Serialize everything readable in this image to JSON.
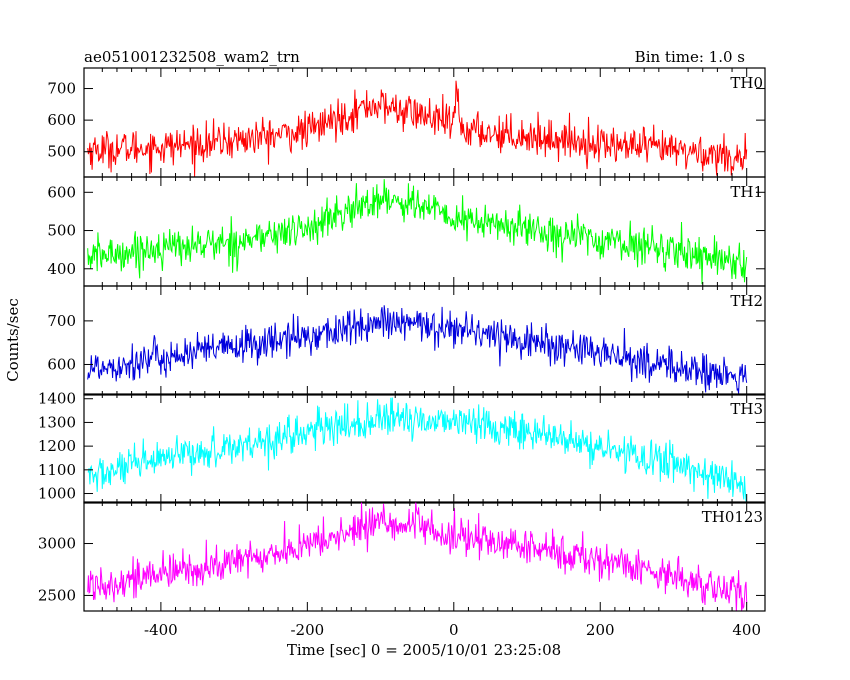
{
  "chart_data": {
    "type": "line",
    "title": "ae051001232508_wam2_trn",
    "subtitle": "Bin time: 1.0 s",
    "xlabel": "Time [sec] 0 = 2005/10/01 23:25:08",
    "ylabel": "Counts/sec",
    "xlim": [
      -505,
      425
    ],
    "xticks": [
      -400,
      -200,
      0,
      200,
      400
    ],
    "grid": false,
    "panels": [
      {
        "name": "TH0",
        "color": "#ff0000",
        "ylim": [
          420,
          765
        ],
        "yticks": [
          500,
          600,
          700
        ],
        "x": [
          -500,
          -400,
          -300,
          -200,
          -150,
          -110,
          -50,
          0,
          4,
          10,
          100,
          200,
          300,
          400
        ],
        "values": [
          505,
          515,
          535,
          565,
          615,
          650,
          620,
          585,
          700,
          570,
          550,
          525,
          505,
          480
        ]
      },
      {
        "name": "TH1",
        "color": "#00ff00",
        "ylim": [
          355,
          640
        ],
        "yticks": [
          400,
          500,
          600
        ],
        "x": [
          -500,
          -400,
          -300,
          -200,
          -150,
          -100,
          -50,
          0,
          100,
          200,
          300,
          400
        ],
        "values": [
          430,
          455,
          470,
          505,
          545,
          585,
          570,
          530,
          505,
          475,
          450,
          415
        ]
      },
      {
        "name": "TH2",
        "color": "#0000dd",
        "ylim": [
          530,
          780
        ],
        "yticks": [
          600,
          700
        ],
        "x": [
          -500,
          -400,
          -300,
          -200,
          -100,
          0,
          100,
          200,
          300,
          400
        ],
        "values": [
          590,
          615,
          640,
          665,
          695,
          685,
          655,
          625,
          595,
          565
        ]
      },
      {
        "name": "TH3",
        "color": "#00ffff",
        "ylim": [
          960,
          1420
        ],
        "yticks": [
          1000,
          1100,
          1200,
          1300,
          1400
        ],
        "x": [
          -500,
          -400,
          -300,
          -200,
          -100,
          0,
          100,
          200,
          300,
          400
        ],
        "values": [
          1070,
          1140,
          1200,
          1260,
          1310,
          1310,
          1260,
          1190,
          1130,
          1030
        ]
      },
      {
        "name": "TH0123",
        "color": "#ff00ff",
        "ylim": [
          2350,
          3400
        ],
        "yticks": [
          2500,
          3000
        ],
        "x": [
          -500,
          -400,
          -300,
          -200,
          -150,
          -100,
          -50,
          0,
          100,
          200,
          300,
          400
        ],
        "values": [
          2600,
          2700,
          2820,
          2980,
          3090,
          3220,
          3160,
          3060,
          2970,
          2840,
          2700,
          2480
        ]
      }
    ]
  }
}
